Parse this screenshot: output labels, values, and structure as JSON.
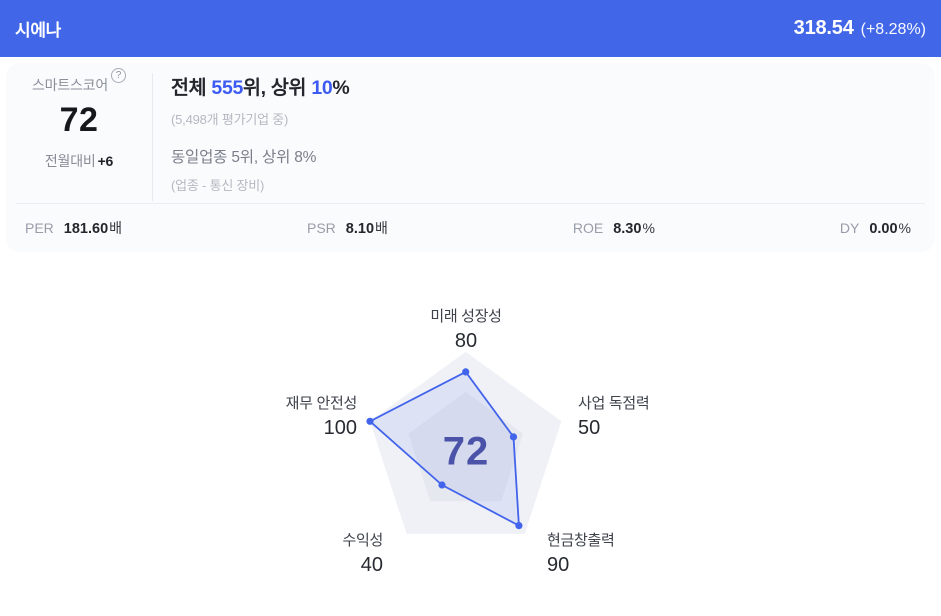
{
  "header": {
    "title": "시에나",
    "price": "318.54",
    "change": "(+8.28%)"
  },
  "score_card": {
    "score_label": "스마트스코어",
    "help_icon": "?",
    "score": "72",
    "mom_label": "전월대비",
    "mom_change": "+6",
    "rank_line": {
      "p1": "전체 ",
      "rank_value": "555",
      "p2": "위, 상위 ",
      "percent_value": "10",
      "p3": "%"
    },
    "rank_note": "(5,498개 평가기업 중)",
    "industry_rank": "동일업종 5위, 상위 8%",
    "industry_note": "(업종 - 통신 장비)"
  },
  "metrics": [
    {
      "label": "PER",
      "value": "181.60",
      "suffix": "배"
    },
    {
      "label": "PSR",
      "value": "8.10",
      "suffix": "배"
    },
    {
      "label": "ROE",
      "value": "8.30",
      "suffix": "%"
    },
    {
      "label": "DY",
      "value": "0.00",
      "suffix": "%"
    }
  ],
  "chart_data": {
    "type": "radar",
    "categories": [
      "미래 성장성",
      "사업 독점력",
      "현금창출력",
      "수익성",
      "재무 안전성"
    ],
    "values": [
      80,
      50,
      90,
      40,
      100
    ],
    "max": 100,
    "center_score": "72",
    "inner_ring_scale": 0.6,
    "legend_position": "none",
    "colors": {
      "outer_ring": "#F0F1F6",
      "inner_ring": "#E6E8EF",
      "data_fill": "rgba(66,99,235,0.10)",
      "data_stroke": "#4263EB",
      "dot": "#4263EB",
      "center_score": "#4A53A8"
    }
  },
  "colors": {
    "header_bg": "#4166E8",
    "accent_blue": "#3B5BF2",
    "card_bg": "#FAFBFD"
  }
}
